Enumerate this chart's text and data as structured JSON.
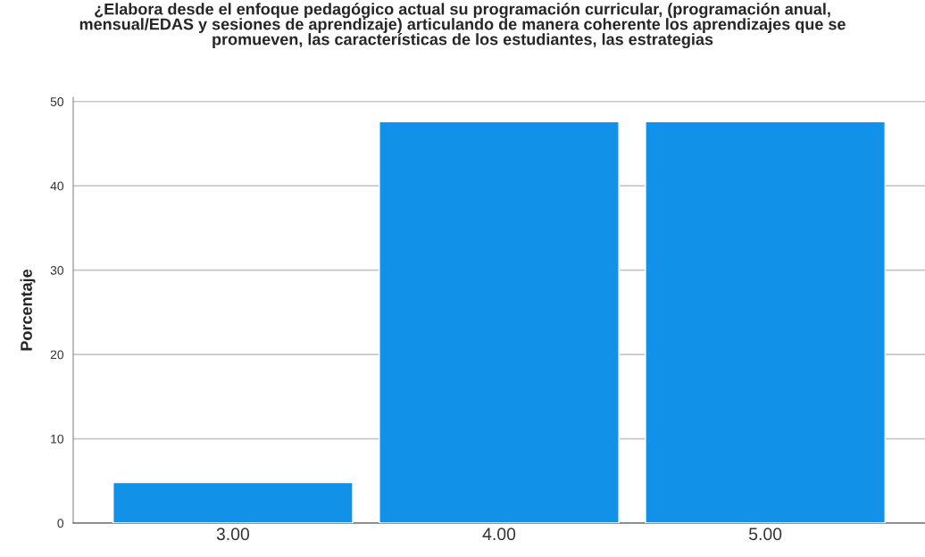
{
  "chart_data": {
    "type": "bar",
    "title": "¿Elabora desde el enfoque pedagógico actual su programación curricular, (programación anual,\nmensual/EDAS y sesiones de aprendizaje) articulando de manera coherente los aprendizajes que se\npromueven, las características de los estudiantes, las estrategias",
    "ylabel": "Porcentaje",
    "categories": [
      "3.00",
      "4.00",
      "5.00"
    ],
    "values": [
      4.8,
      47.6,
      47.6
    ],
    "color": "#1192e8",
    "ylim": [
      0,
      50.5
    ],
    "yticks": [
      0,
      10,
      20,
      30,
      40,
      50
    ],
    "grid": "y"
  }
}
